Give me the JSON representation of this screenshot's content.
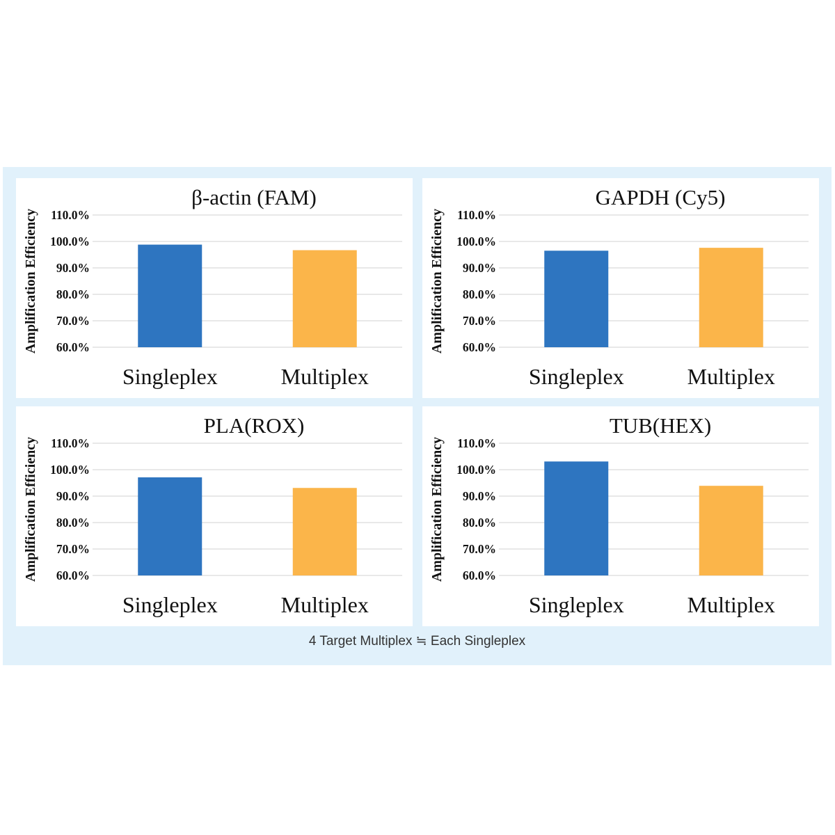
{
  "caption": "4 Target Multiplex ≒ Each Singleplex",
  "colors": {
    "singleplex": "#2e75c0",
    "multiplex": "#fbb54a",
    "grid": "#d9d9d9",
    "background": "#e1f1fb"
  },
  "chart_data": [
    {
      "type": "bar",
      "title": "β-actin (FAM)",
      "ylabel": "Amplification Efficiency",
      "xlabel": "",
      "categories": [
        "Singleplex",
        "Multiplex"
      ],
      "values": [
        98.8,
        96.7
      ],
      "ylim": [
        60,
        110
      ],
      "yticks": [
        "60.0%",
        "70.0%",
        "80.0%",
        "90.0%",
        "100.0%",
        "110.0%"
      ],
      "grid": true
    },
    {
      "type": "bar",
      "title": "GAPDH (Cy5)",
      "ylabel": "Amplification Efficiency",
      "xlabel": "",
      "categories": [
        "Singleplex",
        "Multiplex"
      ],
      "values": [
        96.5,
        97.6
      ],
      "ylim": [
        60,
        110
      ],
      "yticks": [
        "60.0%",
        "70.0%",
        "80.0%",
        "90.0%",
        "100.0%",
        "110.0%"
      ],
      "grid": true
    },
    {
      "type": "bar",
      "title": "PLA(ROX)",
      "ylabel": "Amplification Efficiency",
      "xlabel": "",
      "categories": [
        "Singleplex",
        "Multiplex"
      ],
      "values": [
        97.1,
        93.1
      ],
      "ylim": [
        60,
        110
      ],
      "yticks": [
        "60.0%",
        "70.0%",
        "80.0%",
        "90.0%",
        "100.0%",
        "110.0%"
      ],
      "grid": true
    },
    {
      "type": "bar",
      "title": "TUB(HEX)",
      "ylabel": "Amplification Efficiency",
      "xlabel": "",
      "categories": [
        "Singleplex",
        "Multiplex"
      ],
      "values": [
        103.1,
        93.9
      ],
      "ylim": [
        60,
        110
      ],
      "yticks": [
        "60.0%",
        "70.0%",
        "80.0%",
        "90.0%",
        "100.0%",
        "110.0%"
      ],
      "grid": true
    }
  ]
}
